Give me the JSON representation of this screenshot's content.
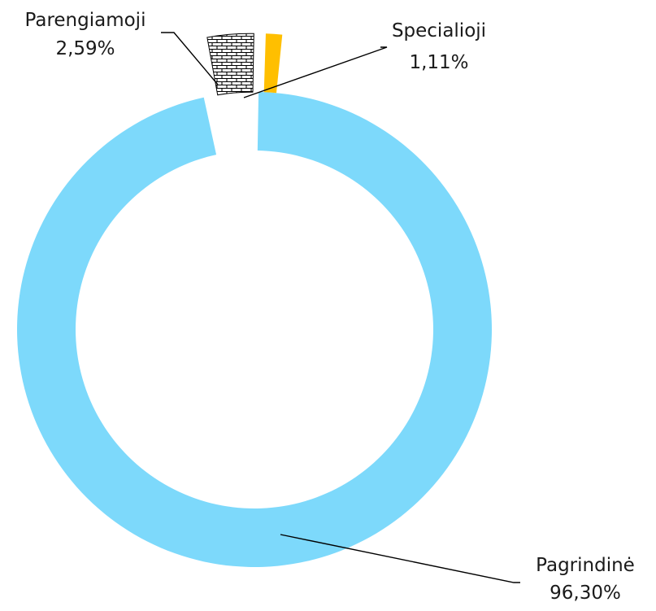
{
  "chart_data": {
    "type": "pie",
    "variant": "donut",
    "title": "",
    "legend": "none",
    "slices": [
      {
        "name": "Pagrindinė",
        "value": 96.3,
        "value_label": "96,30%",
        "color": "#7dd9fb",
        "pattern": "none",
        "exploded": false
      },
      {
        "name": "Parengiamoji",
        "value": 2.59,
        "value_label": "2,59%",
        "color": "#ffffff",
        "pattern": "brick",
        "exploded": true
      },
      {
        "name": "Specialioji",
        "value": 1.11,
        "value_label": "1,11%",
        "color": "#ffbf00",
        "pattern": "none",
        "exploded": true
      }
    ]
  }
}
